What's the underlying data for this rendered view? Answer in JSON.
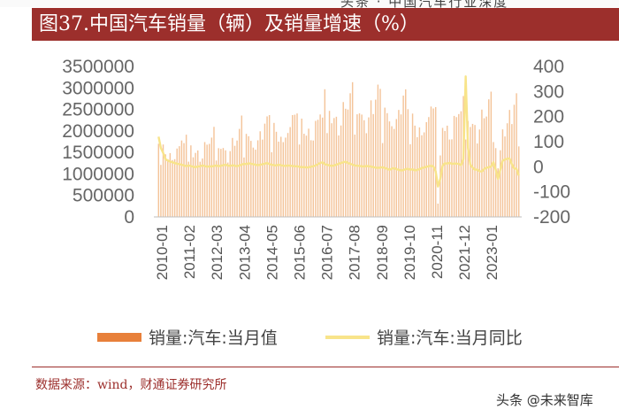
{
  "page_header_fragment": "头条 · 中国汽车行业深度",
  "title": "图37.中国汽车销量（辆）及销量增速（%）",
  "source": "数据来源：wind，财通证券研究所",
  "watermark": "头条 @未来智库",
  "colors": {
    "accent": "#9c2f2c",
    "bar": "#f4c49a",
    "line": "#f8e48a",
    "legend_bar": "#e8803a"
  },
  "chart_data": {
    "type": "bar",
    "title": "中国汽车销量（辆）及销量增速（%）",
    "y_left": {
      "ylim": [
        0,
        3500000
      ],
      "ticks": [
        "3500000",
        "3000000",
        "2500000",
        "2000000",
        "1500000",
        "1000000",
        "500000",
        "0"
      ]
    },
    "y_right": {
      "ylim": [
        -200,
        400
      ],
      "ticks": [
        "400",
        "300",
        "200",
        "100",
        "0",
        "-100",
        "-200"
      ]
    },
    "x_tick_labels": [
      "2010-01",
      "2011-02",
      "2012-03",
      "2013-04",
      "2014-05",
      "2015-06",
      "2016-07",
      "2017-08",
      "2018-09",
      "2019-10",
      "2020-11",
      "2021-12",
      "2023-01"
    ],
    "legend": [
      "销量:汽车:当月值",
      "销量:汽车:当月同比"
    ],
    "annual_avg_monthly_sales": [
      1500000,
      1540000,
      1610000,
      1830000,
      1960000,
      2050000,
      2340000,
      2400000,
      2350000,
      2140000,
      2110000,
      2180000,
      2240000,
      2100000
    ],
    "yoy_pct": [
      120,
      75,
      55,
      30,
      25,
      20,
      18,
      15,
      12,
      10,
      8,
      5,
      2,
      5,
      3,
      0,
      -2,
      1,
      2,
      5,
      3,
      0,
      2,
      1,
      3,
      5,
      2,
      4,
      6,
      8,
      5,
      3,
      6,
      4,
      2,
      5,
      8,
      12,
      10,
      14,
      12,
      10,
      8,
      6,
      8,
      10,
      12,
      15,
      10,
      8,
      6,
      5,
      8,
      6,
      4,
      3,
      5,
      4,
      3,
      2,
      2,
      0,
      -2,
      -1,
      -3,
      -2,
      0,
      2,
      5,
      10,
      15,
      18,
      10,
      8,
      5,
      3,
      5,
      8,
      12,
      15,
      18,
      20,
      15,
      12,
      8,
      5,
      4,
      3,
      2,
      1,
      3,
      2,
      1,
      -2,
      -3,
      -5,
      -3,
      -2,
      -5,
      -8,
      -12,
      -8,
      -5,
      -10,
      -12,
      -15,
      -13,
      -10,
      -8,
      -12,
      -10,
      -15,
      -12,
      -10,
      -5,
      -3,
      0,
      2,
      4,
      1,
      -18,
      -79,
      -48,
      4,
      14,
      12,
      16,
      11,
      13,
      12,
      12,
      6,
      30,
      360,
      75,
      8,
      -3,
      -12,
      -11,
      -18,
      -19,
      -9,
      -4,
      -2,
      1,
      18,
      -11,
      -48,
      -12,
      24,
      29,
      32,
      33,
      10,
      -7,
      -8,
      -35
    ]
  }
}
